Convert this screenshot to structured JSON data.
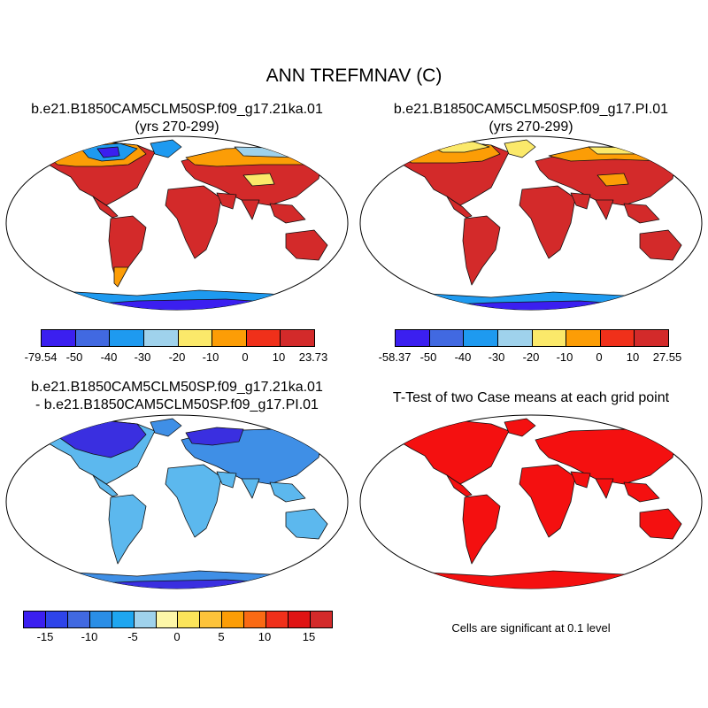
{
  "title": "ANN TREFMNAV (C)",
  "panels": {
    "top_left": {
      "title_line1": "b.e21.B1850CAM5CLM50SP.f09_g17.21ka.01",
      "title_line2": "(yrs 270-299)"
    },
    "top_right": {
      "title_line1": "b.e21.B1850CAM5CLM50SP.f09_g17.PI.01",
      "title_line2": "(yrs 270-299)"
    },
    "bottom_left": {
      "title_line1": "b.e21.B1850CAM5CLM50SP.f09_g17.21ka.01",
      "title_line2": "- b.e21.B1850CAM5CLM50SP.f09_g17.PI.01"
    },
    "bottom_right": {
      "title_line1": "T-Test of two Case means at each grid point",
      "note": "Cells are significant at 0.1 level"
    }
  },
  "colorbars": {
    "top_left": {
      "colors": [
        "#3b1ff0",
        "#4169e1",
        "#1e9af0",
        "#9fd2ec",
        "#fbe96a",
        "#fc9d06",
        "#f0301a",
        "#d32a2a"
      ],
      "labels": [
        "-79.54",
        "-50",
        "-40",
        "-30",
        "-20",
        "-10",
        "0",
        "10",
        "23.73"
      ]
    },
    "top_right": {
      "colors": [
        "#3b1ff0",
        "#4169e1",
        "#1e9af0",
        "#9fd2ec",
        "#fbe96a",
        "#fc9d06",
        "#f0301a",
        "#d32a2a"
      ],
      "labels": [
        "-58.37",
        "-50",
        "-40",
        "-30",
        "-20",
        "-10",
        "0",
        "10",
        "27.55"
      ]
    },
    "bottom": {
      "colors": [
        "#3b1ff0",
        "#2e44ea",
        "#4169e1",
        "#2a8ee6",
        "#1ea6f0",
        "#9fd2ec",
        "#fdf7a8",
        "#fbe45a",
        "#fdc33a",
        "#fc9d06",
        "#fa6a14",
        "#f0301a",
        "#e01414",
        "#d32a2a"
      ],
      "labels": [
        "-15",
        "-10",
        "-5",
        "0",
        "5",
        "10",
        "15"
      ]
    }
  },
  "map_colors": {
    "warm_land": "#d32a2a",
    "hot_red": "#f0301a",
    "orange": "#fc9d06",
    "yellow": "#fbe96a",
    "light_blue": "#9fd2ec",
    "mid_blue": "#1e9af0",
    "royal_blue": "#4169e1",
    "deep_blue": "#3b1ff0",
    "diff_light": "#5cb8ee",
    "diff_mid": "#3f8fe6",
    "diff_dark": "#3a2fe0",
    "sig_red": "#f41010"
  }
}
